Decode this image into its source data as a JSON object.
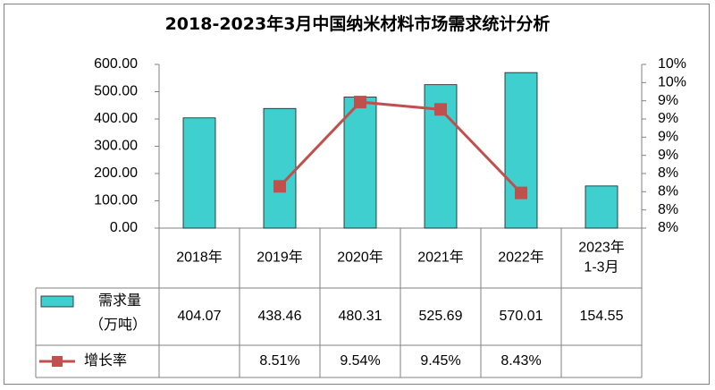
{
  "colors": {
    "bar": "#3fcfcf",
    "bar_stroke": "#1a1a1a",
    "line": "#c0504d",
    "grid": "#808080"
  },
  "chart_data": {
    "type": "bar+line",
    "title": "2018-2023年3月中国纳米材料市场需求统计分析",
    "categories": [
      "2018年",
      "2019年",
      "2020年",
      "2021年",
      "2022年",
      "2023年\n1-3月"
    ],
    "y_left": {
      "lim": [
        0,
        600
      ],
      "ticks": [
        "0.00",
        "100.00",
        "200.00",
        "300.00",
        "400.00",
        "500.00",
        "600.00"
      ]
    },
    "y_right": {
      "lim": [
        8.0,
        10.0
      ],
      "ticks": [
        "8%",
        "8%",
        "8%",
        "8%",
        "9%",
        "9%",
        "9%",
        "9%",
        "10%",
        "10%"
      ]
    },
    "series": [
      {
        "name": "需求量\n（万吨）",
        "type": "bar",
        "axis": "left",
        "values": [
          404.07,
          438.46,
          480.31,
          525.69,
          570.01,
          154.55
        ],
        "labels": [
          "404.07",
          "438.46",
          "480.31",
          "525.69",
          "570.01",
          "154.55"
        ]
      },
      {
        "name": "增长率",
        "type": "line",
        "axis": "right",
        "values": [
          null,
          8.51,
          9.54,
          9.45,
          8.43,
          null
        ],
        "labels": [
          "",
          "8.51%",
          "9.54%",
          "9.45%",
          "8.43%",
          ""
        ]
      }
    ],
    "grid": false,
    "legend": "data-table"
  }
}
